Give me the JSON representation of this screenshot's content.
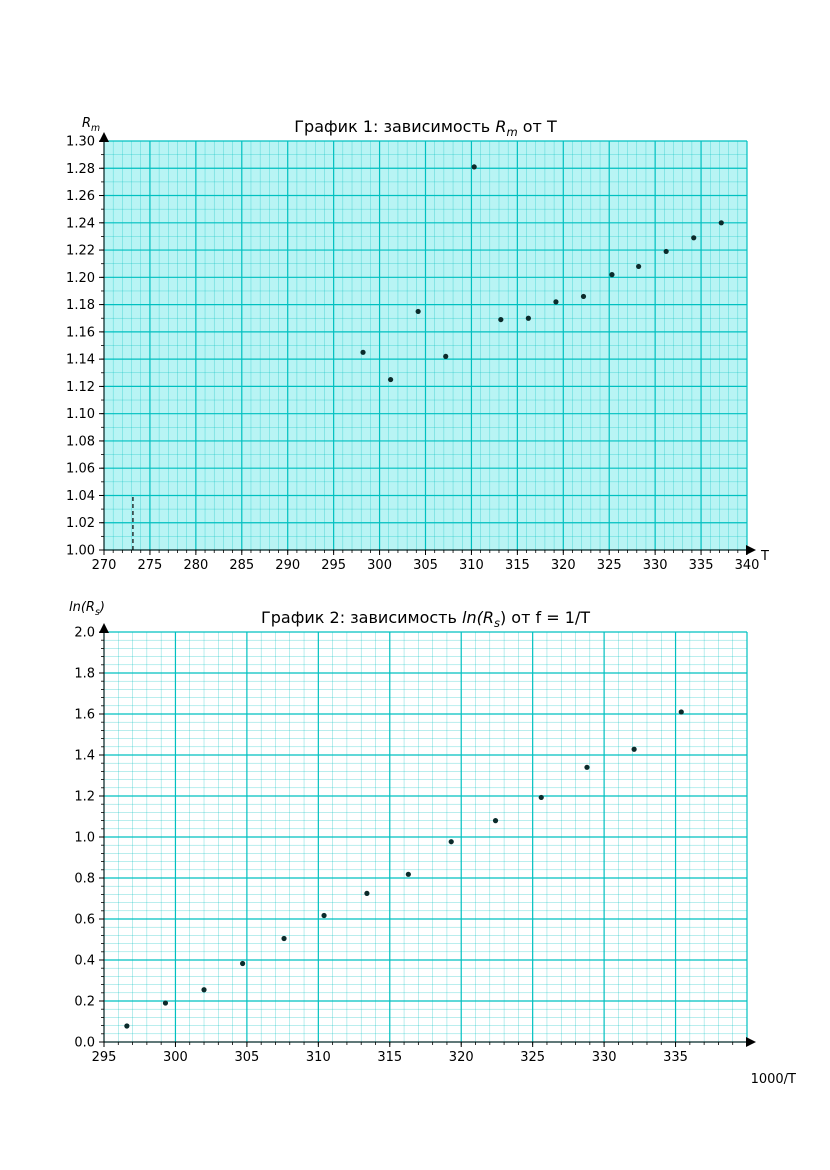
{
  "chart_data": [
    {
      "type": "scatter",
      "title": "График 1: зависимость R_m от T",
      "title_parts": {
        "prefix": "График 1: зависимость ",
        "var": "R",
        "sub": "m",
        "suffix": " от T"
      },
      "xlabel": "T",
      "ylabel": "R_m",
      "ylabel_parts": {
        "var": "R",
        "sub": "m"
      },
      "xlim": [
        270,
        340
      ],
      "ylim": [
        1.0,
        1.3
      ],
      "xticks": [
        "270",
        "275",
        "280",
        "285",
        "290",
        "295",
        "300",
        "305",
        "310",
        "315",
        "320",
        "325",
        "330",
        "335",
        "340"
      ],
      "yticks": [
        "1.00",
        "1.02",
        "1.04",
        "1.06",
        "1.08",
        "1.10",
        "1.12",
        "1.14",
        "1.16",
        "1.18",
        "1.20",
        "1.22",
        "1.24",
        "1.26",
        "1.28",
        "1.30"
      ],
      "grid": true,
      "background": "#b8f4f4",
      "grid_color": "#00c0c0",
      "point_color": "#0b2b2b",
      "x": [
        298.2,
        301.2,
        304.2,
        307.2,
        310.3,
        313.2,
        316.2,
        319.2,
        322.2,
        325.3,
        328.2,
        331.2,
        334.2,
        337.2
      ],
      "y": [
        1.145,
        1.125,
        1.175,
        1.142,
        1.281,
        1.169,
        1.17,
        1.182,
        1.186,
        1.202,
        1.208,
        1.219,
        1.229,
        1.24
      ],
      "reference_line": {
        "x": 273.15,
        "y_from": 1.0,
        "y_to": 1.04,
        "style": "dashed"
      }
    },
    {
      "type": "scatter",
      "title": "График 2: зависимость ln(R_s) от f = 1/T",
      "title_parts": {
        "prefix": "График 2: зависимость ",
        "var": "ln(R",
        "sub": "s",
        "suffix": ") от f = 1/T"
      },
      "xlabel": "1000/T",
      "ylabel": "ln(R_s)",
      "ylabel_parts": {
        "var": "ln(R",
        "sub": "s",
        "suffix": ")"
      },
      "xlim": [
        295,
        340
      ],
      "ylim": [
        0.0,
        2.0
      ],
      "xticks": [
        "295",
        "300",
        "305",
        "310",
        "315",
        "320",
        "325",
        "330",
        "335"
      ],
      "yticks": [
        "0.0",
        "0.2",
        "0.4",
        "0.6",
        "0.8",
        "1.0",
        "1.2",
        "1.4",
        "1.6",
        "1.8",
        "2.0"
      ],
      "grid": true,
      "background": "#ffffff",
      "grid_color": "#00c0c0",
      "point_color": "#0b2b2b",
      "x": [
        296.6,
        299.3,
        302.0,
        304.7,
        307.6,
        310.4,
        313.4,
        316.3,
        319.3,
        322.4,
        325.6,
        328.8,
        332.1,
        335.4
      ],
      "y": [
        0.078,
        0.19,
        0.255,
        0.383,
        0.505,
        0.617,
        0.725,
        0.818,
        0.977,
        1.08,
        1.193,
        1.34,
        1.428,
        1.61
      ]
    }
  ]
}
